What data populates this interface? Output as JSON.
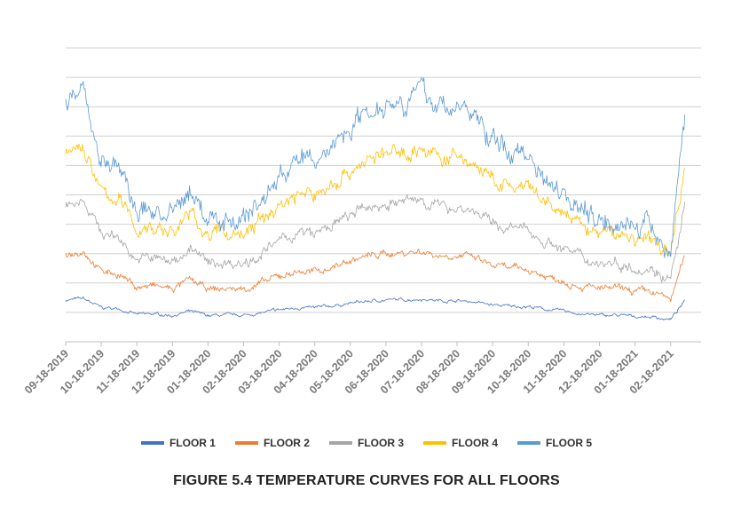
{
  "chart_data": {
    "type": "line",
    "title": "FIGURE 5.4  TEMPERATURE CURVES FOR ALL FLOORS",
    "xlabel": "",
    "ylabel": "",
    "x_unit": "months since 09-18-2019",
    "x_tick_labels": [
      "09-18-2019",
      "10-18-2019",
      "11-18-2019",
      "12-18-2019",
      "01-18-2020",
      "02-18-2020",
      "03-18-2020",
      "04-18-2020",
      "05-18-2020",
      "06-18-2020",
      "07-18-2020",
      "08-18-2020",
      "09-18-2020",
      "10-18-2020",
      "11-18-2020",
      "12-18-2020",
      "01-18-2021",
      "02-18-2021"
    ],
    "xlim": [
      0,
      17.4
    ],
    "ylim": [
      0,
      10
    ],
    "y_gridlines": 10,
    "grid": true,
    "legend_position": "bottom",
    "x": [
      0,
      0.5,
      1,
      1.5,
      2,
      2.5,
      3,
      3.5,
      4,
      4.5,
      5,
      5.5,
      6,
      6.5,
      7,
      7.5,
      8,
      8.5,
      9,
      9.5,
      10,
      10.5,
      11,
      11.5,
      12,
      12.5,
      13,
      13.5,
      14,
      14.5,
      15,
      15.5,
      16,
      16.5,
      17,
      17.4
    ],
    "series": [
      {
        "name": "FLOOR 1",
        "color": "#4472C4",
        "values": [
          1.42,
          1.47,
          1.16,
          1.12,
          0.93,
          0.94,
          0.9,
          1.03,
          0.89,
          0.9,
          0.9,
          0.98,
          1.08,
          1.16,
          1.15,
          1.22,
          1.31,
          1.38,
          1.42,
          1.43,
          1.46,
          1.4,
          1.4,
          1.36,
          1.25,
          1.21,
          1.2,
          1.1,
          1.05,
          0.94,
          0.9,
          0.9,
          0.86,
          0.85,
          0.75,
          1.38
        ]
      },
      {
        "name": "FLOOR 2",
        "color": "#ED7D31",
        "values": [
          3.0,
          3.12,
          2.4,
          2.31,
          1.86,
          1.89,
          1.8,
          2.1,
          1.77,
          1.8,
          1.8,
          1.98,
          2.22,
          2.4,
          2.37,
          2.55,
          2.76,
          2.91,
          3.0,
          3.03,
          3.09,
          2.94,
          2.94,
          2.85,
          2.58,
          2.49,
          2.46,
          2.22,
          2.1,
          1.89,
          1.8,
          1.8,
          1.71,
          1.68,
          1.44,
          2.91
        ]
      },
      {
        "name": "FLOOR 3",
        "color": "#A5A5A5",
        "values": [
          4.7,
          4.9,
          3.7,
          3.55,
          2.8,
          2.85,
          2.7,
          3.2,
          2.65,
          2.7,
          2.7,
          3.0,
          3.4,
          3.7,
          3.65,
          3.95,
          4.3,
          4.55,
          4.7,
          4.75,
          4.85,
          4.6,
          4.6,
          4.45,
          4.0,
          3.85,
          3.8,
          3.4,
          3.2,
          2.85,
          2.7,
          2.7,
          2.55,
          2.5,
          2.1,
          4.55
        ]
      },
      {
        "name": "FLOOR 4",
        "color": "#FFC000",
        "values": [
          6.38,
          6.65,
          5.04,
          4.84,
          3.83,
          3.9,
          3.7,
          4.37,
          3.63,
          3.7,
          3.7,
          4.1,
          4.64,
          5.04,
          4.97,
          5.38,
          5.84,
          6.18,
          6.38,
          6.45,
          6.58,
          6.25,
          6.25,
          6.05,
          5.44,
          5.24,
          5.17,
          4.64,
          4.37,
          3.9,
          3.7,
          3.7,
          3.5,
          3.43,
          2.9,
          6.18
        ]
      },
      {
        "name": "FLOOR 5",
        "color": "#5B9BD5",
        "values": [
          8.2,
          8.6,
          6.2,
          5.9,
          4.4,
          4.5,
          4.2,
          5.2,
          4.1,
          4.2,
          4.2,
          4.8,
          5.6,
          6.2,
          6.1,
          6.7,
          7.4,
          7.9,
          8.2,
          8.3,
          8.5,
          8.0,
          8.0,
          7.7,
          6.8,
          6.5,
          6.4,
          5.6,
          5.2,
          4.5,
          4.2,
          4.2,
          3.9,
          3.8,
          3.0,
          7.9
        ]
      }
    ]
  }
}
